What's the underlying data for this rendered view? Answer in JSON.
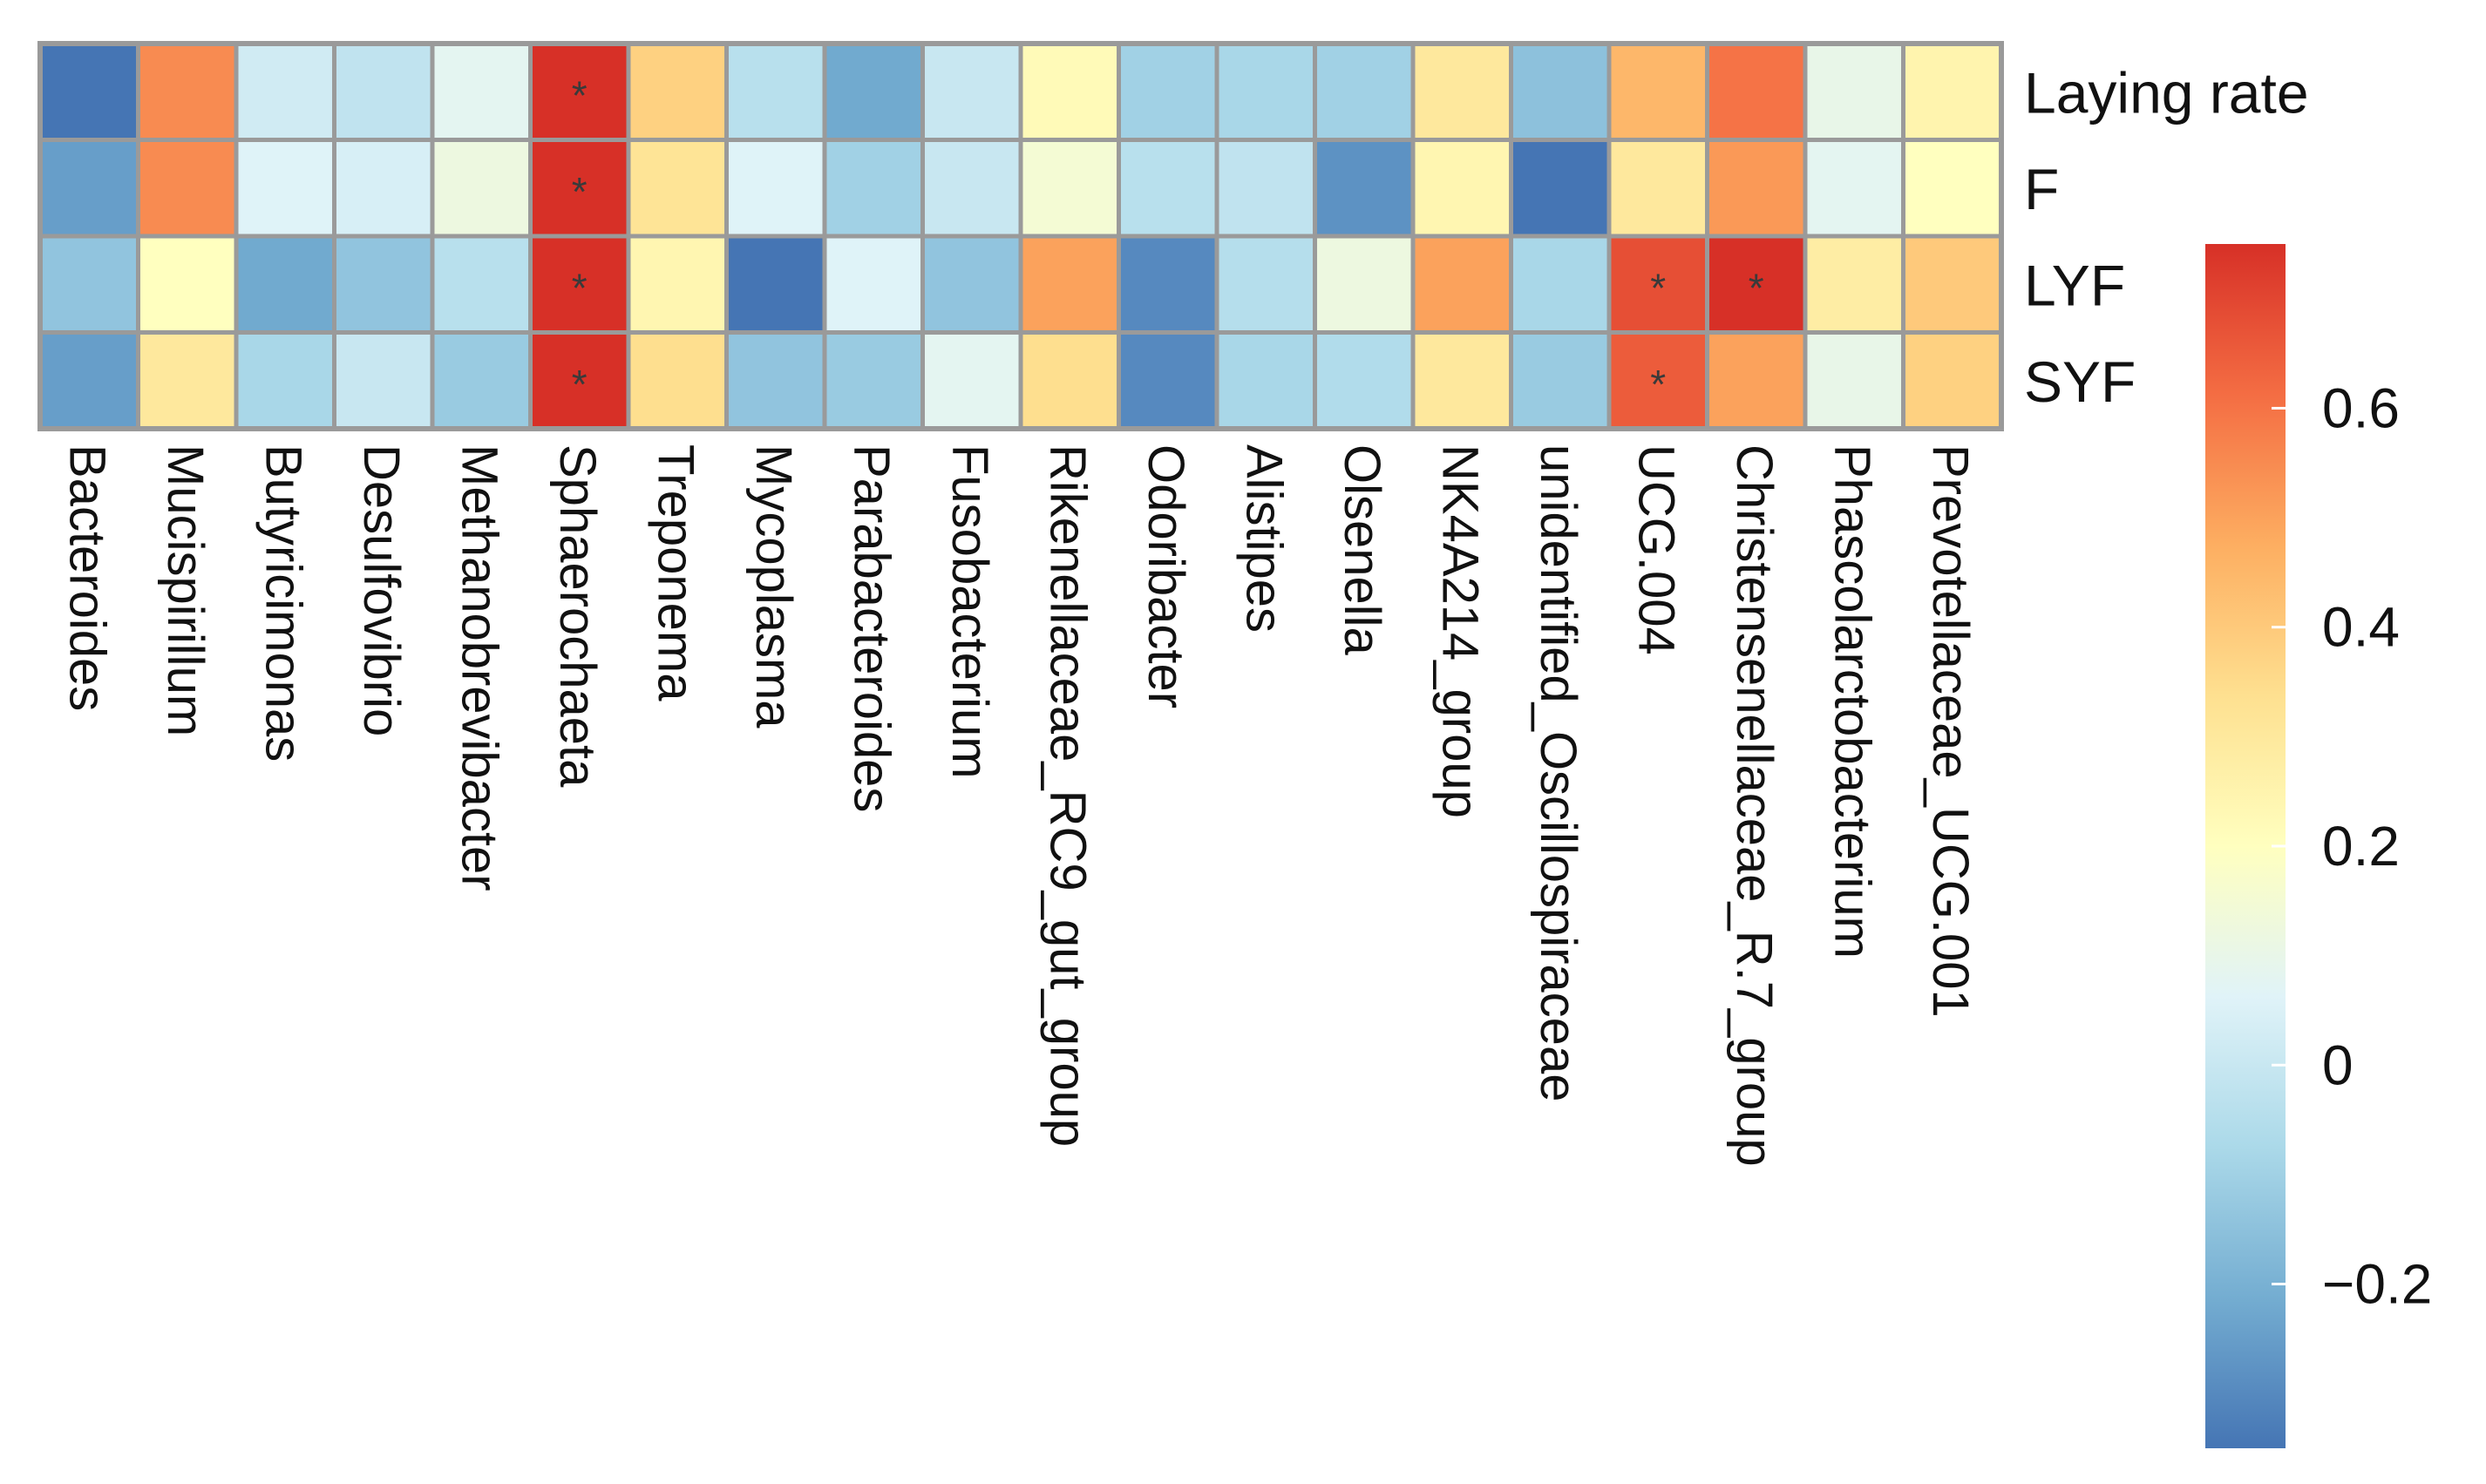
{
  "chart_data": {
    "type": "heatmap",
    "title": "",
    "rows": [
      "Laying rate",
      "F",
      "LYF",
      "SYF"
    ],
    "columns": [
      "Bacteroides",
      "Mucispirillum",
      "Butyricimonas",
      "Desulfovibrio",
      "Methanobrevibacter",
      "Sphaerochaeta",
      "Treponema",
      "Mycoplasma",
      "Parabacteroides",
      "Fusobacterium",
      "Rikenellaceae_RC9_gut_group",
      "Odoribacter",
      "Alistipes",
      "Olsenella",
      "NK4A214_group",
      "unidentified_Oscillospiraceae",
      "UCG.004",
      "Christensenellaceae_R.7_group",
      "Phascolarctobacterium",
      "Prevotellaceae_UCG.001"
    ],
    "values": [
      [
        -0.35,
        0.55,
        0.02,
        -0.02,
        0.08,
        0.75,
        0.38,
        -0.04,
        -0.22,
        0.0,
        0.22,
        -0.1,
        -0.08,
        -0.1,
        0.3,
        -0.15,
        0.45,
        0.6,
        0.1,
        0.25
      ],
      [
        -0.25,
        0.55,
        0.06,
        0.04,
        0.12,
        0.75,
        0.32,
        0.06,
        -0.1,
        0.0,
        0.15,
        -0.04,
        -0.02,
        -0.28,
        0.24,
        -0.35,
        0.3,
        0.52,
        0.08,
        0.2
      ],
      [
        -0.14,
        0.2,
        -0.22,
        -0.14,
        -0.04,
        0.75,
        0.24,
        -0.35,
        0.06,
        -0.14,
        0.5,
        -0.3,
        -0.05,
        0.12,
        0.5,
        -0.08,
        0.68,
        0.75,
        0.28,
        0.4
      ],
      [
        -0.25,
        0.3,
        -0.08,
        0.0,
        -0.12,
        0.75,
        0.34,
        -0.14,
        -0.12,
        0.08,
        0.34,
        -0.3,
        -0.08,
        -0.06,
        0.3,
        -0.12,
        0.65,
        0.5,
        0.1,
        0.38
      ]
    ],
    "significant": [
      [
        5,
        0
      ],
      [
        5,
        1
      ],
      [
        5,
        2
      ],
      [
        5,
        3
      ],
      [
        16,
        2
      ],
      [
        16,
        3
      ],
      [
        17,
        2
      ]
    ],
    "significance_marker": "*",
    "colorbar": {
      "ticks": [
        -0.2,
        0,
        0.2,
        0.4,
        0.6
      ],
      "tick_labels": [
        "−0.2",
        "0",
        "0.2",
        "0.4",
        "0.6"
      ],
      "min": -0.35,
      "max": 0.75,
      "colors": [
        "#4575b4",
        "#74add1",
        "#abd9e9",
        "#e0f3f8",
        "#ffffbf",
        "#fee090",
        "#fdae61",
        "#f46d43",
        "#d73027"
      ]
    },
    "cell_border_color": "#9a9a9a"
  }
}
